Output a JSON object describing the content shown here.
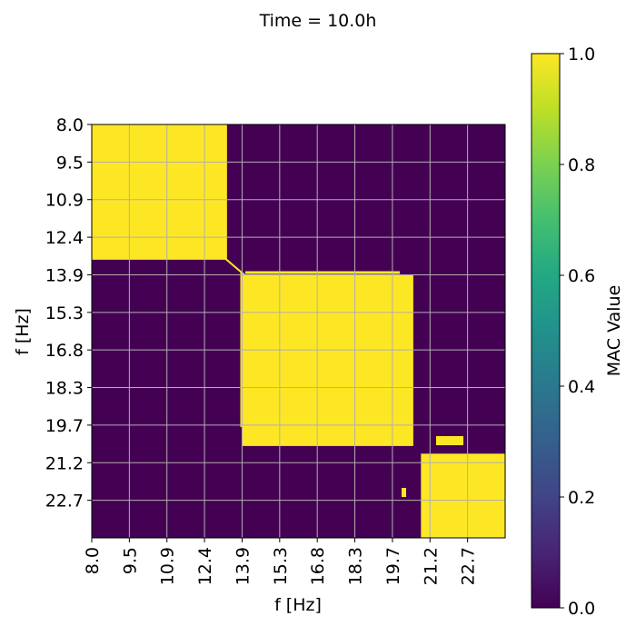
{
  "chart_data": {
    "type": "heatmap",
    "title": "Time = 10.0h",
    "xlabel": "f [Hz]",
    "ylabel": "f [Hz]",
    "x_tick_labels": [
      "8.0",
      "9.5",
      "10.9",
      "12.4",
      "13.9",
      "15.3",
      "16.8",
      "18.3",
      "19.7",
      "21.2",
      "22.7"
    ],
    "y_tick_labels": [
      "8.0",
      "9.5",
      "10.9",
      "12.4",
      "13.9",
      "15.3",
      "16.8",
      "18.3",
      "19.7",
      "21.2",
      "22.7"
    ],
    "frequency_range": [
      8.0,
      24.2
    ],
    "grid": true,
    "colormap": "viridis",
    "colorbar": {
      "label": "MAC Value",
      "range": [
        0.0,
        1.0
      ],
      "tick_labels": [
        "0.0",
        "0.2",
        "0.4",
        "0.6",
        "0.8",
        "1.0"
      ]
    },
    "high_mac_blocks": [
      {
        "f_from": 8.0,
        "f_to": 13.3,
        "value": 1.0
      },
      {
        "f_from": 13.9,
        "f_to": 20.6,
        "value": 1.0
      },
      {
        "f_from": 20.9,
        "f_to": 24.2,
        "value": 1.0
      }
    ],
    "background_value": 0.0,
    "colors": {
      "low": "#440154",
      "high": "#fde725",
      "grid": "#b0b0b0"
    }
  }
}
